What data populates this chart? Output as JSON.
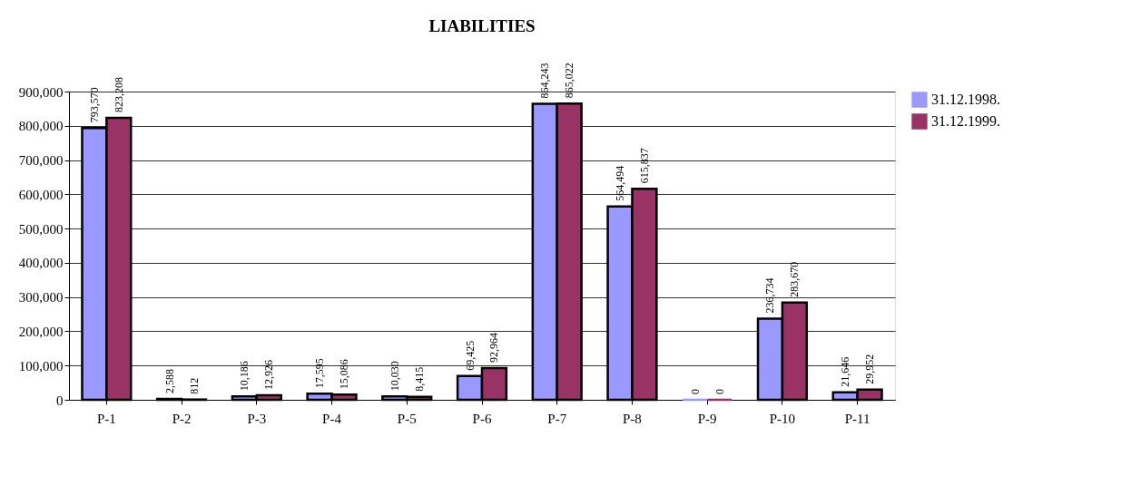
{
  "chart_data": {
    "type": "bar",
    "title": "LIABILITIES",
    "categories": [
      "P-1",
      "P-2",
      "P-3",
      "P-4",
      "P-5",
      "P-6",
      "P-7",
      "P-8",
      "P-9",
      "P-10",
      "P-11"
    ],
    "series": [
      {
        "name": "31.12.1998.",
        "color": "#9999ff",
        "values": [
          793570,
          2588,
          10186,
          17595,
          10030,
          69425,
          864243,
          564494,
          0,
          236734,
          21646
        ],
        "value_labels": [
          "793,570",
          "2,588",
          "10,186",
          "17,595",
          "10,030",
          "69,425",
          "864,243",
          "564,494",
          "0",
          "236,734",
          "21,646"
        ]
      },
      {
        "name": "31.12.1999.",
        "color": "#993366",
        "values": [
          823208,
          812,
          12926,
          15086,
          8415,
          92964,
          865022,
          615837,
          0,
          283670,
          29952
        ],
        "value_labels": [
          "823,208",
          "812",
          "12,926",
          "15,086",
          "8,415",
          "92,964",
          "865,022",
          "615,837",
          "0",
          "283,670",
          "29,952"
        ]
      }
    ],
    "ylim": [
      0,
      900000
    ],
    "yticks": [
      0,
      {
        "value": 100000,
        "label": "100,000"
      },
      {
        "value": 200000,
        "label": "200,000"
      },
      {
        "value": 300000,
        "label": "300,000"
      },
      {
        "value": 400000,
        "label": "400,000"
      },
      {
        "value": 500000,
        "label": "500,000"
      },
      {
        "value": 600000,
        "label": "600,000"
      },
      {
        "value": 700000,
        "label": "700,000"
      },
      {
        "value": 800000,
        "label": "800,000"
      },
      {
        "value": 900000,
        "label": "900,000"
      }
    ],
    "grid": "y",
    "legend": "right"
  }
}
